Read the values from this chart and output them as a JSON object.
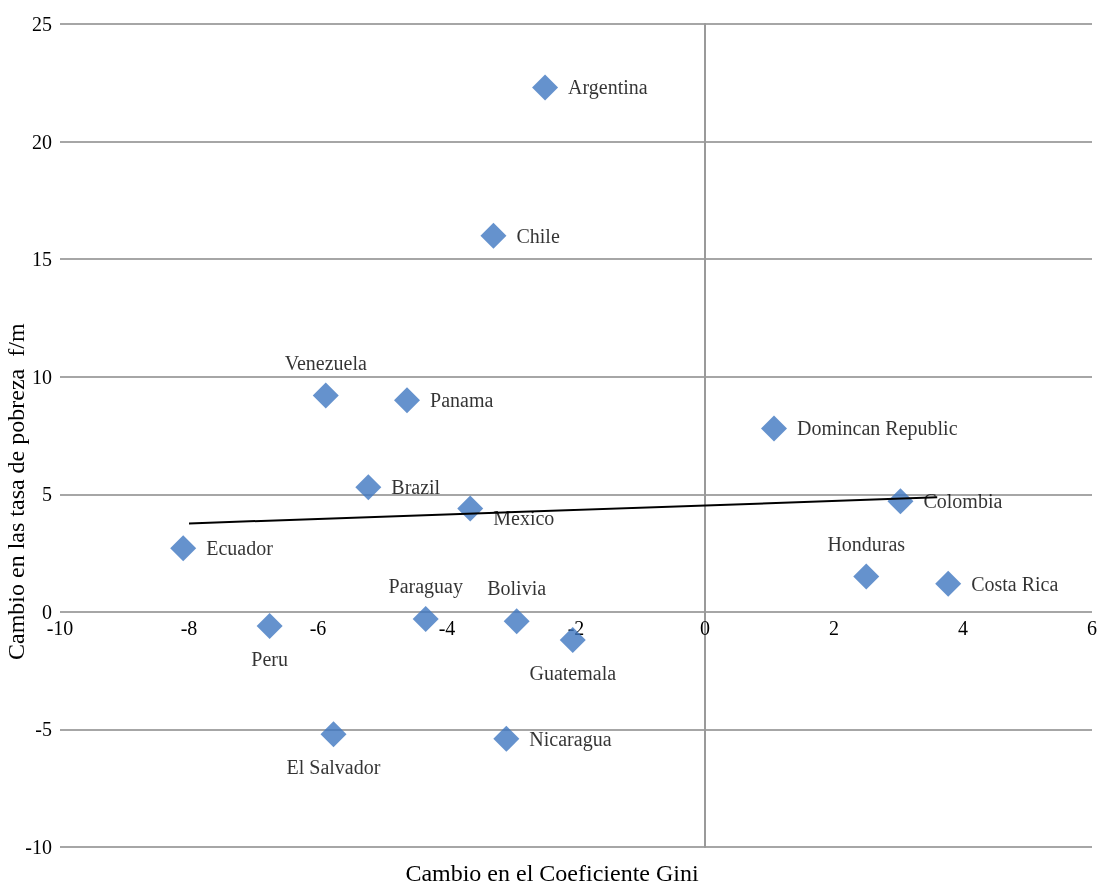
{
  "chart_data": {
    "type": "scatter",
    "xlabel": "Cambio en el Coeficiente Gini",
    "ylabel": "Cambio en las tasa de pobreza  f/m",
    "xlim": [
      -10,
      6
    ],
    "xticks": [
      -10,
      -8,
      -6,
      -4,
      -2,
      0,
      2,
      4,
      6
    ],
    "ylim": [
      -10,
      25
    ],
    "yticks": [
      -10,
      -5,
      0,
      5,
      10,
      15,
      20,
      25
    ],
    "grid": "y",
    "marker": "diamond",
    "series": [
      {
        "color": "#3f77c0",
        "x": [
          -2.48,
          -3.28,
          -5.88,
          -4.62,
          1.07,
          -5.22,
          -3.64,
          3.03,
          -8.09,
          2.5,
          3.77,
          -4.33,
          -2.92,
          -2.05,
          -6.75,
          -5.76,
          -3.08
        ],
        "values": [
          22.3,
          16.0,
          9.2,
          9.0,
          7.8,
          5.3,
          4.4,
          4.7,
          2.7,
          1.5,
          1.2,
          -0.3,
          -0.4,
          -1.2,
          -0.6,
          -5.2,
          -5.4
        ],
        "value_labels": [
          "Argentina",
          "Chile",
          "Venezuela",
          "Panama",
          "Domincan Republic",
          "Brazil",
          "Mexico",
          "Colombia",
          "Ecuador",
          "Honduras",
          "Costa Rica",
          "Paraguay",
          "Bolivia",
          "Guatemala",
          "Peru",
          "El Salvador",
          "Nicaragua"
        ]
      },
      {
        "type": "line",
        "marker": "none",
        "color": "#000000",
        "x": [
          -8,
          3.6
        ],
        "values": [
          3.76,
          4.87
        ]
      }
    ]
  }
}
